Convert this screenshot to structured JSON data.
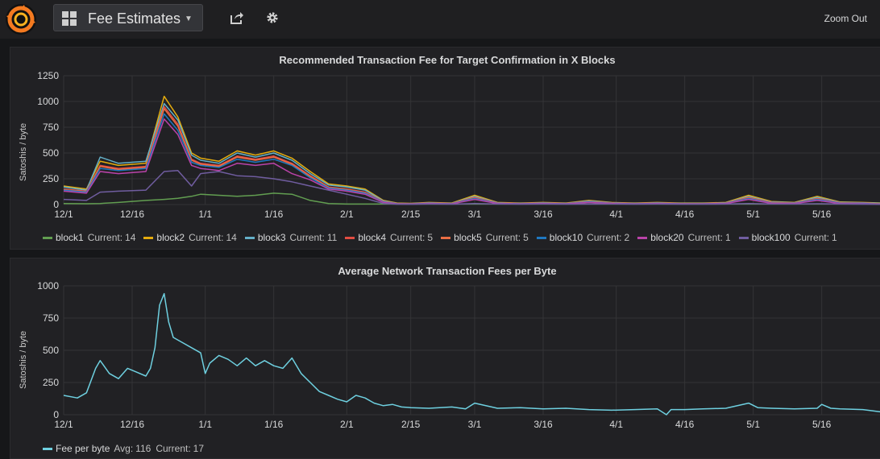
{
  "topbar": {
    "dashboard_title": "Fee Estimates",
    "zoom_out_label": "Zoom Out",
    "icons": [
      "grafana-logo-icon",
      "dashboard-grid-icon",
      "caret-down-icon",
      "share-icon",
      "gear-icon"
    ]
  },
  "colors": {
    "block1": "#629e51",
    "block2": "#e5ac0e",
    "block3": "#64b0c8",
    "block4": "#e24d42",
    "block5": "#ea6e44",
    "block10": "#1f78c1",
    "block20": "#ba43a9",
    "block100": "#705da0",
    "fee": "#6ed0e0"
  },
  "panels": [
    {
      "title": "Recommended Transaction Fee for Target Confirmation in X Blocks",
      "ylabel": "Satoshis / byte",
      "legend": [
        {
          "name": "block1",
          "current_label": "Current:",
          "current": "14"
        },
        {
          "name": "block2",
          "current_label": "Current:",
          "current": "14"
        },
        {
          "name": "block3",
          "current_label": "Current:",
          "current": "11"
        },
        {
          "name": "block4",
          "current_label": "Current:",
          "current": "5"
        },
        {
          "name": "block5",
          "current_label": "Current:",
          "current": "5"
        },
        {
          "name": "block10",
          "current_label": "Current:",
          "current": "2"
        },
        {
          "name": "block20",
          "current_label": "Current:",
          "current": "1"
        },
        {
          "name": "block100",
          "current_label": "Current:",
          "current": "1"
        }
      ]
    },
    {
      "title": "Average Network Transaction Fees per Byte",
      "ylabel": "Satoshis / byte",
      "legend": [
        {
          "name": "Fee per byte",
          "avg_label": "Avg:",
          "avg": "116",
          "current_label": "Current:",
          "current": "17"
        }
      ]
    }
  ],
  "chart_data": [
    {
      "type": "line",
      "title": "Recommended Transaction Fee for Target Confirmation in X Blocks",
      "ylabel": "Satoshis / byte",
      "ylim": [
        0,
        1250
      ],
      "yticks": [
        0,
        250,
        500,
        750,
        1000,
        1250
      ],
      "x_tick_labels": [
        "12/1",
        "12/16",
        "1/1",
        "1/16",
        "2/1",
        "2/15",
        "3/1",
        "3/16",
        "4/1",
        "4/16",
        "5/1",
        "5/16"
      ],
      "x_tick_days": [
        0,
        15,
        31,
        46,
        62,
        76,
        90,
        105,
        121,
        136,
        151,
        166
      ],
      "xlim_days": [
        0,
        180
      ],
      "grid": true,
      "legend": "bottom",
      "x_days": [
        0,
        5,
        8,
        12,
        18,
        22,
        25,
        28,
        30,
        34,
        38,
        42,
        46,
        50,
        54,
        58,
        62,
        66,
        70,
        73,
        76,
        80,
        85,
        90,
        95,
        100,
        105,
        110,
        115,
        120,
        125,
        130,
        135,
        140,
        145,
        150,
        155,
        160,
        165,
        170,
        175,
        180
      ],
      "series": [
        {
          "name": "block1",
          "values": [
            10,
            8,
            10,
            20,
            40,
            50,
            60,
            80,
            100,
            90,
            80,
            90,
            110,
            100,
            40,
            10,
            5,
            5,
            5,
            5,
            5,
            5,
            5,
            5,
            5,
            5,
            5,
            5,
            5,
            5,
            5,
            5,
            5,
            5,
            5,
            5,
            5,
            5,
            5,
            5,
            5,
            14
          ]
        },
        {
          "name": "block2",
          "values": [
            180,
            150,
            420,
            380,
            400,
            1050,
            850,
            500,
            450,
            420,
            520,
            480,
            520,
            450,
            320,
            200,
            180,
            150,
            40,
            15,
            12,
            20,
            15,
            90,
            20,
            15,
            20,
            15,
            40,
            20,
            15,
            20,
            15,
            15,
            20,
            90,
            30,
            20,
            80,
            25,
            20,
            14
          ]
        },
        {
          "name": "block3",
          "values": [
            170,
            140,
            460,
            400,
            420,
            980,
            820,
            480,
            430,
            400,
            500,
            460,
            500,
            430,
            300,
            190,
            170,
            140,
            35,
            12,
            10,
            18,
            12,
            80,
            18,
            12,
            18,
            12,
            35,
            18,
            12,
            18,
            12,
            12,
            18,
            80,
            25,
            18,
            70,
            22,
            18,
            11
          ]
        },
        {
          "name": "block4",
          "values": [
            150,
            130,
            380,
            350,
            370,
            950,
            780,
            440,
            400,
            380,
            470,
            440,
            470,
            400,
            280,
            170,
            150,
            120,
            30,
            10,
            8,
            15,
            10,
            70,
            15,
            10,
            15,
            10,
            30,
            15,
            10,
            15,
            10,
            10,
            15,
            70,
            20,
            15,
            60,
            18,
            15,
            5
          ]
        },
        {
          "name": "block5",
          "values": [
            145,
            125,
            370,
            340,
            360,
            930,
            760,
            430,
            390,
            370,
            460,
            430,
            460,
            390,
            270,
            165,
            145,
            115,
            28,
            10,
            8,
            14,
            10,
            65,
            14,
            10,
            14,
            10,
            28,
            14,
            10,
            14,
            10,
            10,
            14,
            65,
            18,
            14,
            55,
            16,
            14,
            5
          ]
        },
        {
          "name": "block10",
          "values": [
            140,
            120,
            350,
            330,
            350,
            880,
            720,
            410,
            380,
            360,
            440,
            410,
            440,
            380,
            260,
            160,
            140,
            110,
            25,
            8,
            6,
            12,
            8,
            60,
            12,
            8,
            12,
            8,
            25,
            12,
            8,
            12,
            8,
            8,
            12,
            60,
            15,
            12,
            50,
            14,
            12,
            2
          ]
        },
        {
          "name": "block20",
          "values": [
            130,
            110,
            320,
            300,
            320,
            830,
            680,
            380,
            350,
            330,
            400,
            380,
            400,
            300,
            240,
            150,
            130,
            100,
            20,
            6,
            4,
            10,
            6,
            50,
            10,
            6,
            10,
            6,
            20,
            10,
            6,
            10,
            6,
            6,
            10,
            50,
            12,
            10,
            40,
            10,
            8,
            1
          ]
        },
        {
          "name": "block100",
          "values": [
            50,
            40,
            120,
            130,
            140,
            320,
            330,
            180,
            300,
            320,
            280,
            270,
            250,
            220,
            180,
            140,
            100,
            60,
            10,
            3,
            2,
            5,
            3,
            10,
            5,
            3,
            5,
            3,
            5,
            5,
            3,
            5,
            3,
            3,
            5,
            10,
            5,
            5,
            8,
            5,
            3,
            1
          ]
        }
      ]
    },
    {
      "type": "line",
      "title": "Average Network Transaction Fees per Byte",
      "ylabel": "Satoshis / byte",
      "ylim": [
        0,
        1000
      ],
      "yticks": [
        0,
        250,
        500,
        750,
        1000
      ],
      "x_tick_labels": [
        "12/1",
        "12/16",
        "1/1",
        "1/16",
        "2/1",
        "2/15",
        "3/1",
        "3/16",
        "4/1",
        "4/16",
        "5/1",
        "5/16"
      ],
      "x_tick_days": [
        0,
        15,
        31,
        46,
        62,
        76,
        90,
        105,
        121,
        136,
        151,
        166
      ],
      "xlim_days": [
        0,
        180
      ],
      "grid": true,
      "legend": "bottom",
      "series": [
        {
          "name": "Fee per byte",
          "x_days": [
            0,
            3,
            5,
            7,
            8,
            10,
            12,
            14,
            16,
            18,
            19,
            20,
            21,
            22,
            23,
            24,
            26,
            28,
            30,
            31,
            32,
            34,
            36,
            38,
            40,
            42,
            44,
            46,
            48,
            50,
            52,
            54,
            56,
            58,
            60,
            62,
            64,
            66,
            68,
            70,
            72,
            74,
            76,
            80,
            85,
            88,
            90,
            95,
            100,
            105,
            110,
            115,
            120,
            125,
            130,
            132,
            133,
            136,
            140,
            145,
            150,
            152,
            155,
            160,
            165,
            166,
            168,
            170,
            175,
            180
          ],
          "values": [
            150,
            130,
            170,
            360,
            420,
            320,
            280,
            360,
            330,
            300,
            360,
            520,
            850,
            940,
            720,
            600,
            560,
            520,
            480,
            320,
            400,
            460,
            430,
            380,
            440,
            380,
            420,
            380,
            360,
            440,
            320,
            250,
            180,
            150,
            120,
            100,
            150,
            130,
            90,
            70,
            80,
            60,
            55,
            50,
            60,
            45,
            90,
            50,
            55,
            45,
            50,
            40,
            35,
            40,
            45,
            0,
            40,
            40,
            45,
            50,
            90,
            55,
            50,
            45,
            50,
            80,
            50,
            45,
            40,
            17
          ]
        }
      ]
    }
  ]
}
